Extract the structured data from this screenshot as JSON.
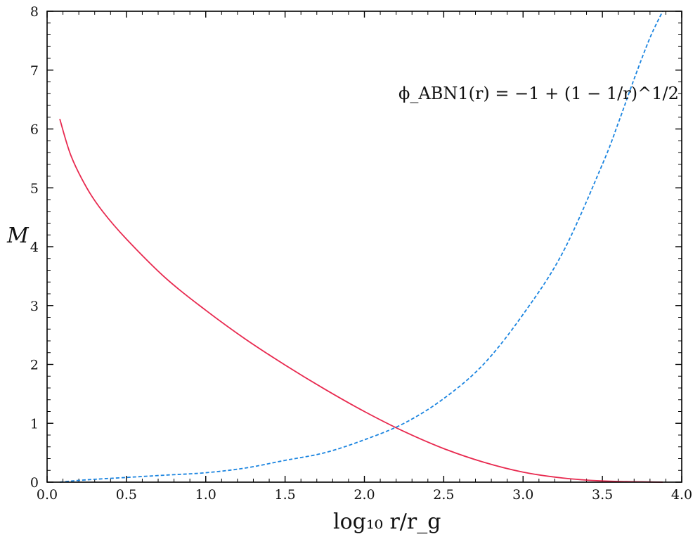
{
  "chart_data": {
    "type": "line",
    "xlabel": "log₁₀ r/r_g",
    "ylabel": "M",
    "xlim": [
      0.0,
      4.0
    ],
    "ylim": [
      0,
      8
    ],
    "x_ticks": [
      "0.0",
      "0.5",
      "1.0",
      "1.5",
      "2.0",
      "2.5",
      "3.0",
      "3.5",
      "4.0"
    ],
    "y_ticks": [
      "0",
      "1",
      "2",
      "3",
      "4",
      "5",
      "6",
      "7",
      "8"
    ],
    "annotation": "ϕ_ABN1(r) = −1 + (1 − 1/r)^1/2",
    "grid": false,
    "series": [
      {
        "style": "solid",
        "color": "#e8294f",
        "x": [
          0.08,
          0.15,
          0.25,
          0.35,
          0.5,
          0.75,
          1.0,
          1.25,
          1.5,
          1.75,
          2.0,
          2.25,
          2.5,
          2.75,
          3.0,
          3.25,
          3.5,
          3.75,
          3.88
        ],
        "y": [
          6.17,
          5.55,
          5.0,
          4.6,
          4.13,
          3.46,
          2.92,
          2.43,
          1.99,
          1.58,
          1.2,
          0.86,
          0.57,
          0.34,
          0.17,
          0.07,
          0.02,
          0.005,
          0.0
        ]
      },
      {
        "style": "dashed",
        "color": "#1a84e0",
        "x": [
          0.08,
          0.25,
          0.5,
          0.75,
          1.0,
          1.25,
          1.5,
          1.75,
          2.0,
          2.25,
          2.5,
          2.75,
          3.0,
          3.25,
          3.5,
          3.6,
          3.7,
          3.8,
          3.88
        ],
        "y": [
          0.0,
          0.04,
          0.08,
          0.12,
          0.16,
          0.24,
          0.37,
          0.5,
          0.72,
          1.0,
          1.42,
          2.0,
          2.85,
          3.9,
          5.4,
          6.1,
          6.85,
          7.55,
          8.0
        ]
      }
    ]
  }
}
